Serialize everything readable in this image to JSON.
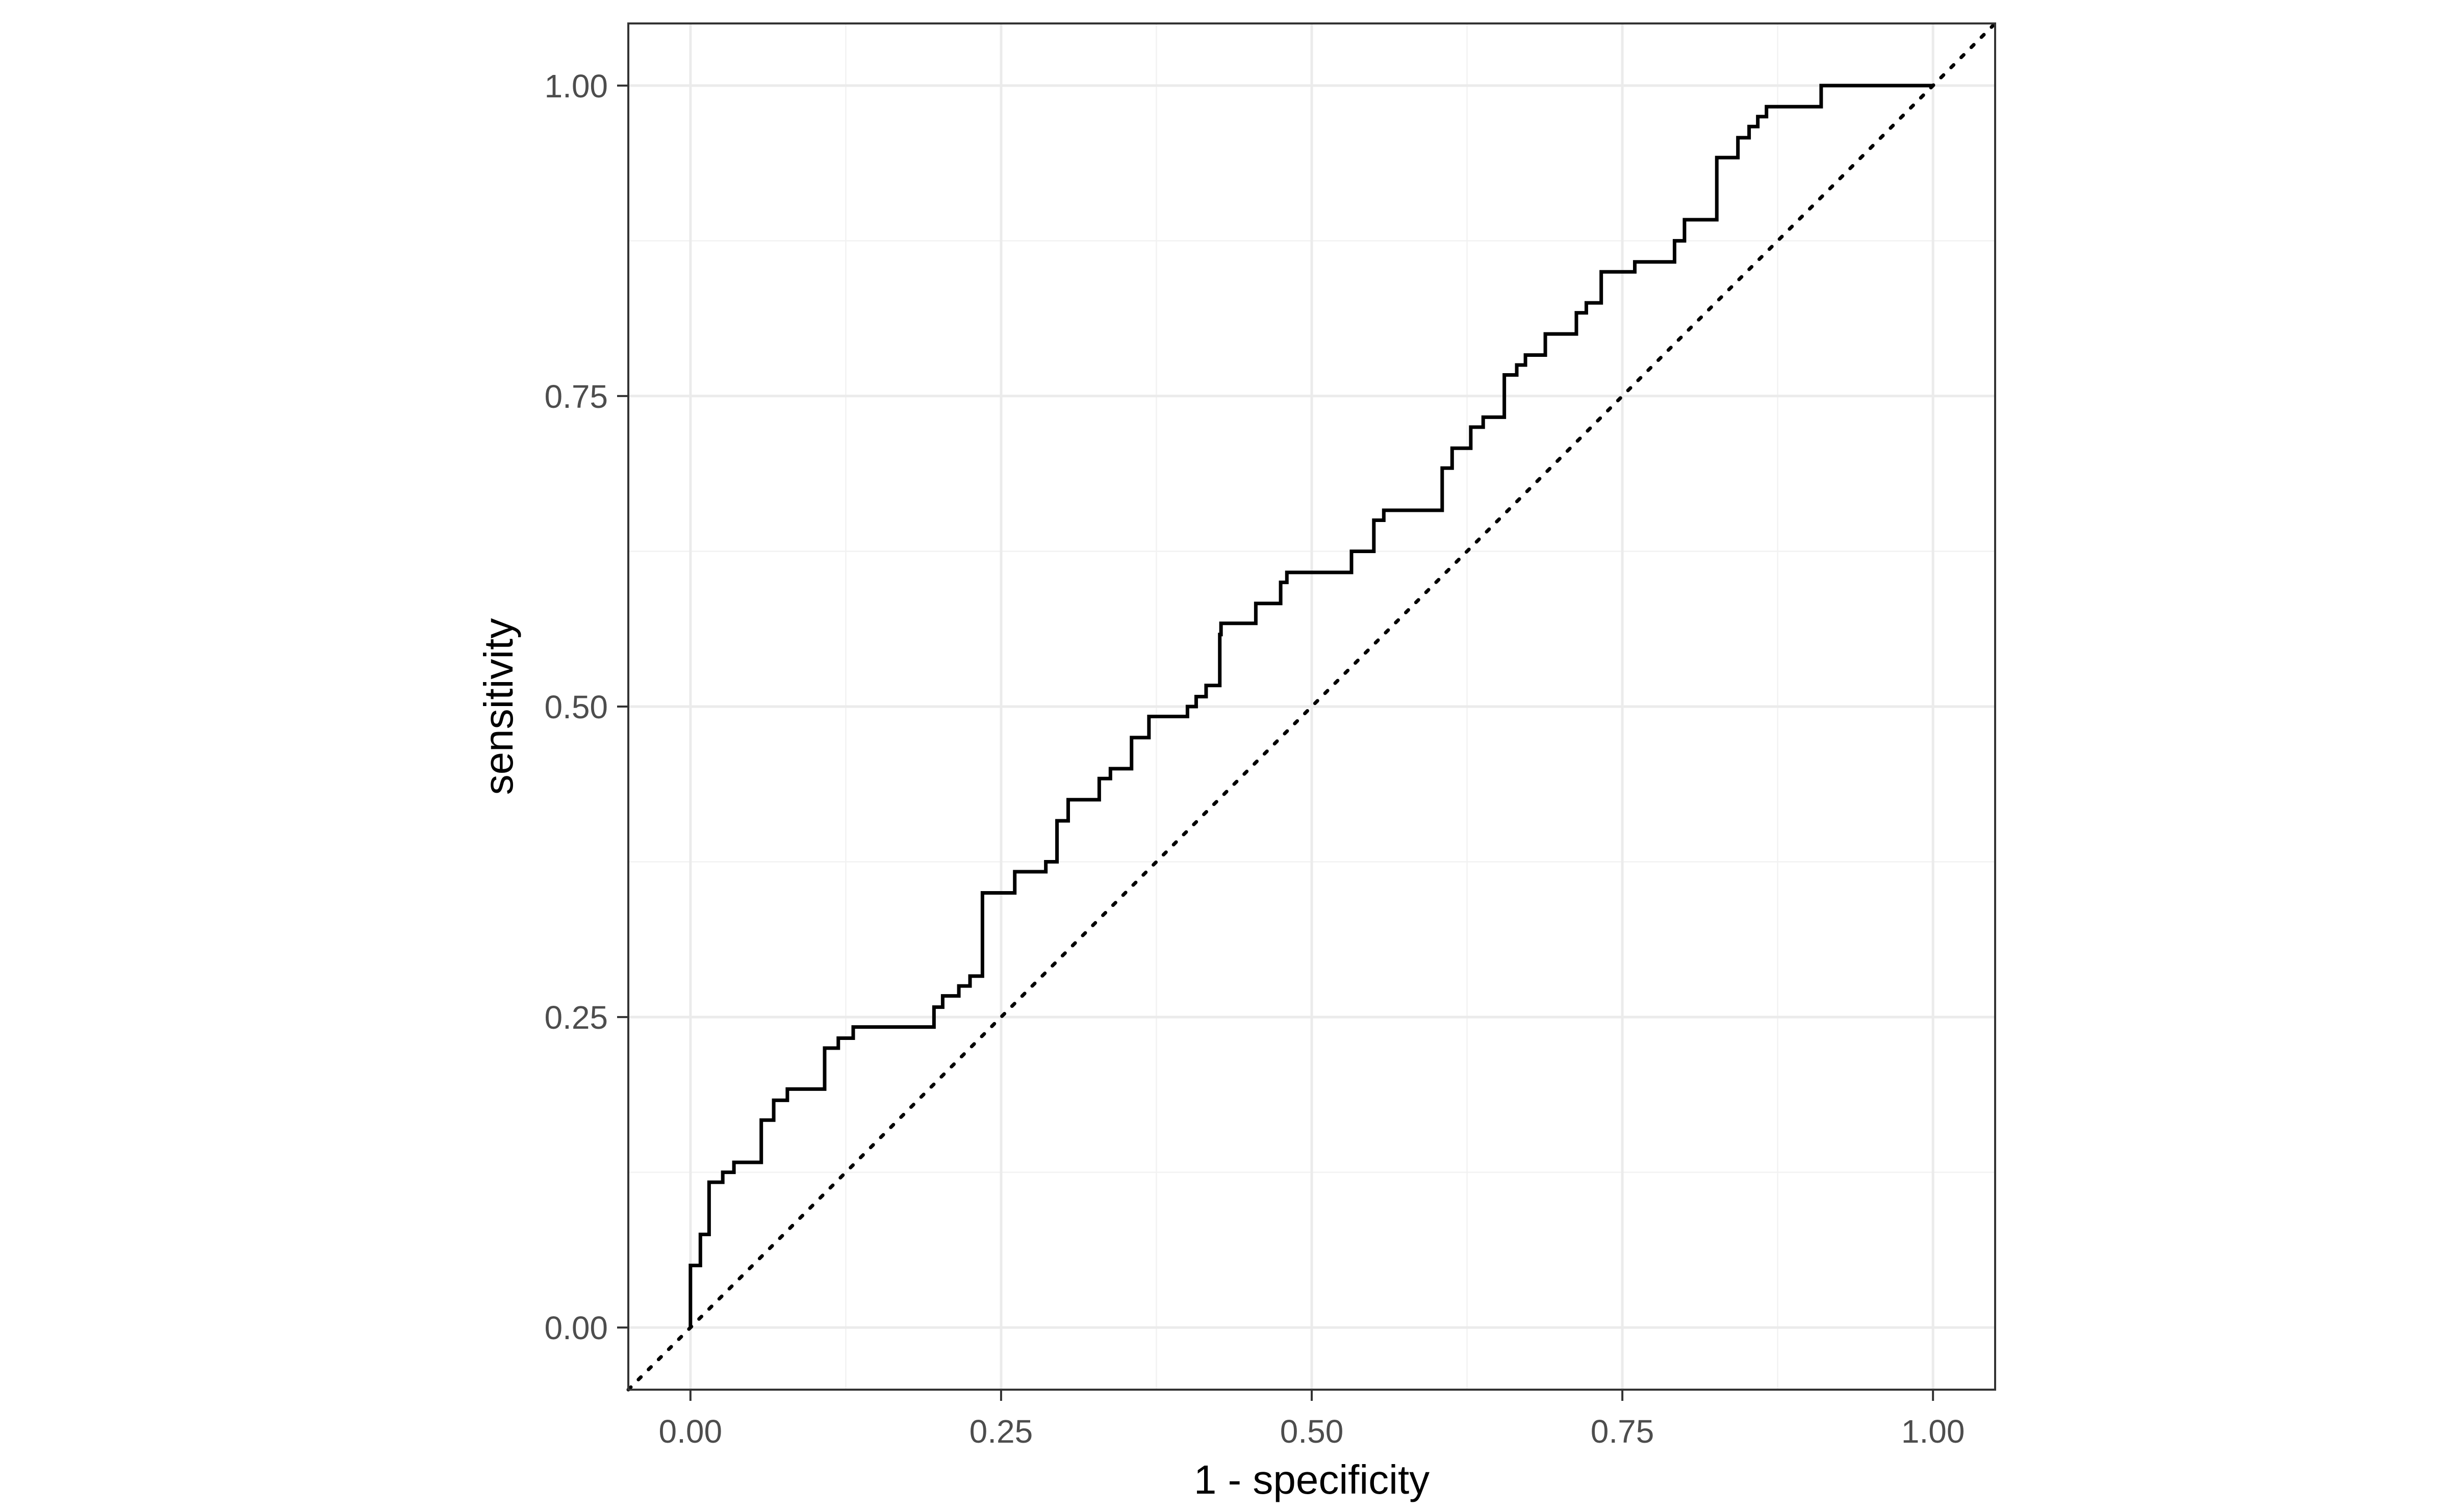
{
  "chart_data": {
    "type": "line",
    "title": "",
    "xlabel": "1 - specificity",
    "ylabel": "sensitivity",
    "xlim": [
      -0.05,
      1.05
    ],
    "ylim": [
      -0.05,
      1.05
    ],
    "x_ticks": [
      0,
      0.25,
      0.5,
      0.75,
      1
    ],
    "x_tick_labels": [
      "0.00",
      "0.25",
      "0.50",
      "0.75",
      "1.00"
    ],
    "y_ticks": [
      0,
      0.25,
      0.5,
      0.75,
      1
    ],
    "y_tick_labels": [
      "0.00",
      "0.25",
      "0.50",
      "0.75",
      "1.00"
    ],
    "grid": true,
    "legend": "none",
    "series": [
      {
        "step": "vh",
        "color": "#000000",
        "x": [
          0,
          0,
          0.008,
          0.015,
          0.026,
          0.035,
          0.057,
          0.067,
          0.078,
          0.108,
          0.119,
          0.131,
          0.196,
          0.203,
          0.216,
          0.225,
          0.235,
          0.261,
          0.286,
          0.295,
          0.304,
          0.329,
          0.338,
          0.355,
          0.369,
          0.4,
          0.407,
          0.415,
          0.426,
          0.427,
          0.455,
          0.475,
          0.48,
          0.532,
          0.55,
          0.558,
          0.605,
          0.613,
          0.628,
          0.638,
          0.655,
          0.665,
          0.672,
          0.688,
          0.713,
          0.721,
          0.733,
          0.76,
          0.792,
          0.8,
          0.826,
          0.843,
          0.852,
          0.859,
          0.866,
          0.91,
          0.987,
          1.0
        ],
        "y": [
          0,
          0.042,
          0.05,
          0.075,
          0.117,
          0.125,
          0.133,
          0.167,
          0.183,
          0.192,
          0.225,
          0.233,
          0.242,
          0.258,
          0.267,
          0.275,
          0.283,
          0.35,
          0.367,
          0.375,
          0.408,
          0.425,
          0.442,
          0.45,
          0.475,
          0.492,
          0.5,
          0.508,
          0.517,
          0.558,
          0.567,
          0.583,
          0.6,
          0.608,
          0.625,
          0.65,
          0.658,
          0.692,
          0.708,
          0.725,
          0.733,
          0.767,
          0.775,
          0.783,
          0.8,
          0.817,
          0.825,
          0.85,
          0.858,
          0.875,
          0.892,
          0.942,
          0.958,
          0.967,
          0.975,
          0.983,
          1.0,
          1.0
        ]
      },
      {
        "color": "#000000",
        "dash": "dotted",
        "x": [
          -0.05,
          1.05
        ],
        "y": [
          -0.05,
          1.05
        ]
      }
    ]
  }
}
